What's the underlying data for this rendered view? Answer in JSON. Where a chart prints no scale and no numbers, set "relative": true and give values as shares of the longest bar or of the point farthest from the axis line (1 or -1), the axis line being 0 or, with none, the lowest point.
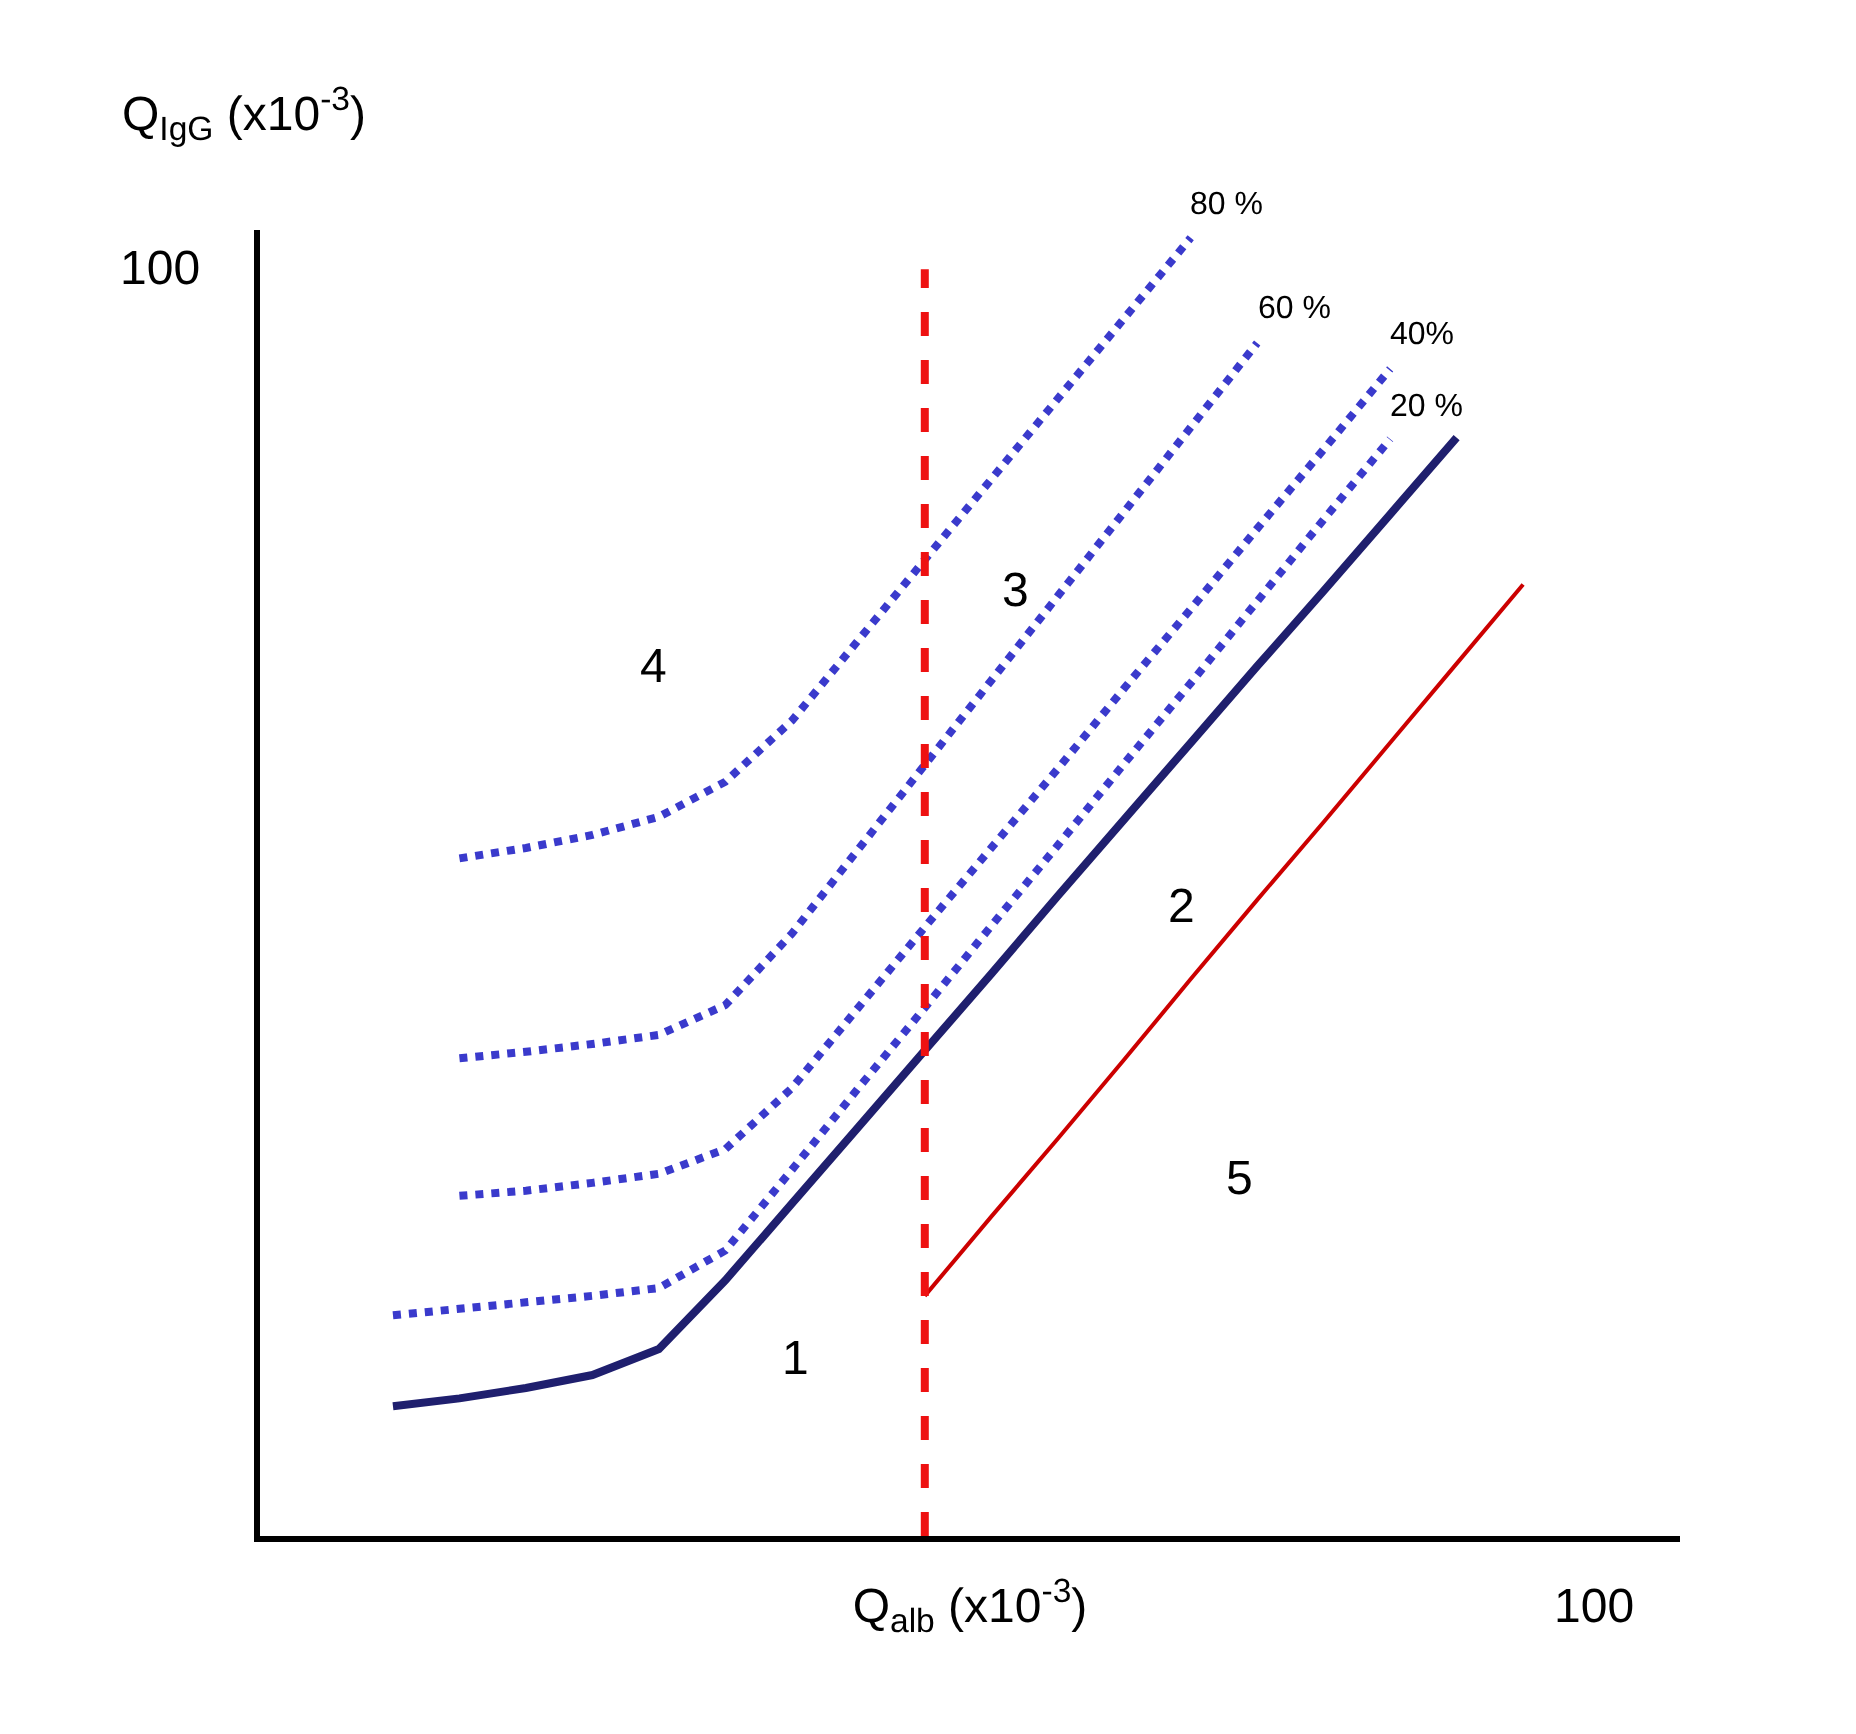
{
  "chart_data": {
    "type": "line",
    "relative": true,
    "xlabel": "Q$_{alb}$ (x10$^{-3}$)",
    "ylabel": "Q$_{IgG}$ (x10$^{-3}$)",
    "legend": false,
    "marker": "none",
    "categories": [
      null,
      null,
      null,
      null,
      null,
      null,
      null,
      null,
      null,
      null,
      null,
      null,
      null,
      null,
      null,
      null,
      null,
      null,
      null,
      null,
      null,
      null
    ],
    "series": [
      {
        "color": "#1f1f6e",
        "line_style": "solid",
        "values": [
          null,
          null,
          0.1,
          0.106,
          0.114,
          0.124,
          0.144,
          0.197,
          0.256,
          0.315,
          0.374,
          0.433,
          0.493,
          0.552,
          0.611,
          0.67,
          0.728,
          0.787,
          0.846,
          null,
          null,
          null
        ]
      },
      {
        "name": "20 %",
        "color": "#3a3acc",
        "line_style": "dotted",
        "values": [
          null,
          null,
          0.17,
          0.175,
          0.18,
          0.185,
          0.191,
          0.22,
          0.282,
          0.345,
          0.407,
          0.47,
          0.532,
          0.595,
          0.657,
          0.72,
          0.783,
          0.845,
          null,
          null,
          null,
          null
        ]
      },
      {
        "name": "40%",
        "color": "#3a3acc",
        "line_style": "dotted",
        "values": [
          null,
          null,
          null,
          0.262,
          0.266,
          0.272,
          0.279,
          0.298,
          0.345,
          0.407,
          0.469,
          0.53,
          0.591,
          0.653,
          0.714,
          0.776,
          0.837,
          0.899,
          null,
          null,
          null,
          null
        ]
      },
      {
        "name": "60 %",
        "color": "#3a3acc",
        "line_style": "dotted",
        "values": [
          null,
          null,
          null,
          0.368,
          0.373,
          0.379,
          0.386,
          0.409,
          0.464,
          0.529,
          0.594,
          0.659,
          0.724,
          0.789,
          0.854,
          0.919,
          null,
          null,
          null,
          null,
          null,
          null
        ]
      },
      {
        "name": "80 %",
        "color": "#3a3acc",
        "line_style": "dotted",
        "values": [
          null,
          null,
          null,
          0.522,
          0.53,
          0.54,
          0.554,
          0.581,
          0.628,
          0.69,
          0.752,
          0.814,
          0.876,
          0.938,
          1,
          null,
          null,
          null,
          null,
          null,
          null,
          null
        ]
      },
      {
        "color": "#cc0000",
        "line_style": "solid",
        "values": [
          null,
          null,
          null,
          null,
          null,
          null,
          null,
          null,
          null,
          null,
          0.185,
          0.246,
          0.306,
          0.367,
          0.429,
          0.49,
          0.55,
          0.611,
          0.672,
          0.733,
          null,
          null
        ]
      }
    ],
    "annotations": [
      "100",
      "100",
      "1",
      "2",
      "3",
      "4",
      "5"
    ]
  }
}
